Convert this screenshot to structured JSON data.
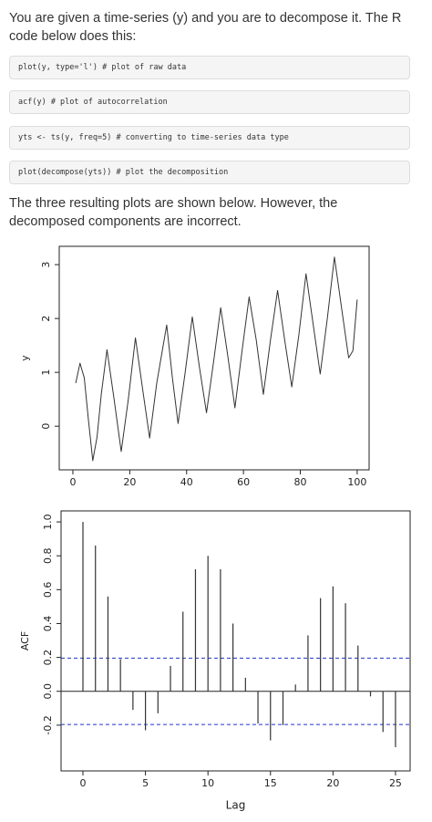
{
  "paragraphs": [
    "You are given a time-series (y) and you are to decompose it. The R code below does this:",
    "The three resulting plots are shown below. However, the decomposed components are incorrect."
  ],
  "code_blocks": [
    "plot(y, type='l') # plot of raw data",
    "acf(y) # plot of autocorrelation",
    "yts <- ts(y, freq=5) # converting to time-series data type",
    "plot(decompose(yts)) # plot the decomposition"
  ],
  "chart_data": [
    {
      "type": "line",
      "ylabel": "y",
      "color": "#333333",
      "x": [
        1,
        2.5,
        4,
        5.5,
        7,
        8.5,
        10,
        12,
        14.5,
        17,
        19.5,
        22,
        24.5,
        27,
        29.5,
        33,
        35,
        37,
        39.5,
        42,
        44.5,
        47,
        49.5,
        52,
        54.5,
        57,
        59.5,
        62,
        64.5,
        67,
        69.5,
        72,
        74.5,
        77,
        79.5,
        82,
        84.5,
        87,
        89.5,
        92,
        94.5,
        97,
        98.5,
        100
      ],
      "values": [
        0.8,
        1.17,
        0.9,
        0.1,
        -0.64,
        -0.2,
        0.6,
        1.42,
        0.5,
        -0.47,
        0.5,
        1.64,
        0.7,
        -0.22,
        0.8,
        1.88,
        0.9,
        0.05,
        1.0,
        2.03,
        1.1,
        0.25,
        1.2,
        2.2,
        1.3,
        0.34,
        1.4,
        2.4,
        1.6,
        0.59,
        1.6,
        2.52,
        1.6,
        0.73,
        1.7,
        2.83,
        1.9,
        0.97,
        2.0,
        3.14,
        2.2,
        1.27,
        1.4,
        2.35
      ],
      "xlim": [
        -4.8,
        104.2
      ],
      "ylim": [
        -0.81,
        3.34
      ],
      "xticks": [
        0,
        20,
        40,
        60,
        80,
        100
      ],
      "yticks": [
        0,
        1,
        2,
        3
      ]
    },
    {
      "type": "bar",
      "xlabel": "Lag",
      "ylabel": "ACF",
      "color": "#333333",
      "x": [
        0,
        1,
        2,
        3,
        4,
        5,
        6,
        7,
        8,
        9,
        10,
        11,
        12,
        13,
        14,
        15,
        16,
        17,
        18,
        19,
        20,
        21,
        22,
        23,
        24,
        25
      ],
      "values": [
        1.0,
        0.86,
        0.56,
        0.19,
        -0.11,
        -0.23,
        -0.13,
        0.15,
        0.47,
        0.72,
        0.8,
        0.72,
        0.4,
        0.08,
        -0.19,
        -0.29,
        -0.2,
        0.04,
        0.33,
        0.55,
        0.62,
        0.52,
        0.27,
        -0.03,
        -0.24,
        -0.33
      ],
      "confidence_lines": [
        -0.196,
        0.196
      ],
      "confidence_color": "#2233cc",
      "xlim": [
        -1.75,
        26.17
      ],
      "ylim": [
        -0.47,
        1.065
      ],
      "xticks": [
        0,
        5,
        10,
        15,
        20,
        25
      ],
      "yticks": [
        -0.2,
        {
          "value": 0,
          "label": "0.0"
        },
        0.2,
        0.4,
        0.6,
        0.8,
        {
          "value": 1,
          "label": "1.0"
        }
      ]
    }
  ]
}
